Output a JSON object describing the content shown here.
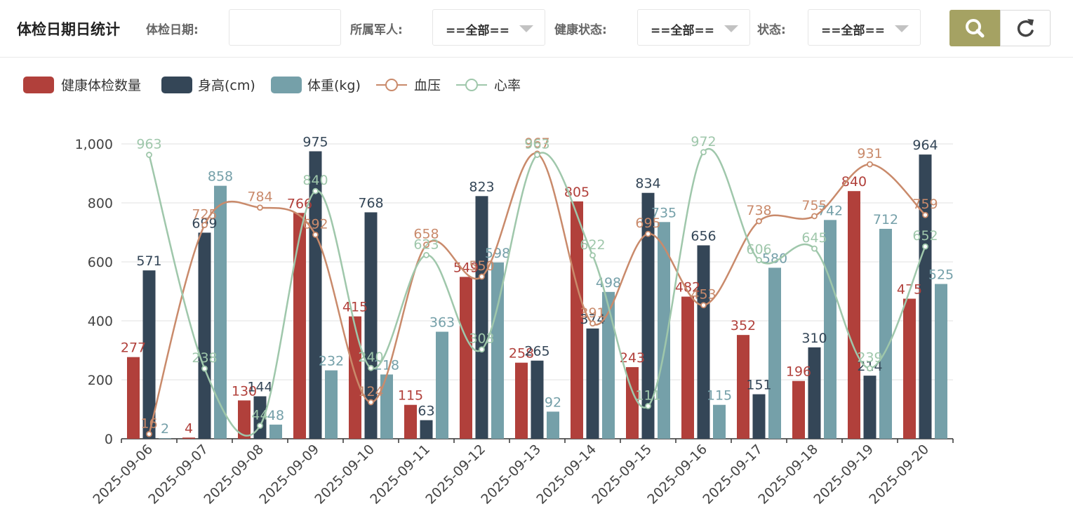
{
  "header": {
    "title": "体检日期日统计",
    "filters": {
      "date_label": "体检日期:",
      "date_value": "",
      "soldier_label": "所属军人:",
      "soldier_value": "==全部==",
      "health_label": "健康状态:",
      "health_value": "==全部==",
      "status_label": "状态:",
      "status_value": "==全部=="
    },
    "search_icon": "search-icon",
    "refresh_icon": "refresh-icon"
  },
  "legend": [
    {
      "name": "健康体检数量",
      "color": "#b1403b",
      "kind": "bar"
    },
    {
      "name": "身高(cm)",
      "color": "#344657",
      "kind": "bar"
    },
    {
      "name": "体重(kg)",
      "color": "#75a0a9",
      "kind": "bar"
    },
    {
      "name": "血压",
      "color": "#c98a6b",
      "kind": "line"
    },
    {
      "name": "心率",
      "color": "#9fc7ab",
      "kind": "line"
    }
  ],
  "chart_data": {
    "type": "bar",
    "categories": [
      "2025-09-06",
      "2025-09-07",
      "2025-09-08",
      "2025-09-09",
      "2025-09-10",
      "2025-09-11",
      "2025-09-12",
      "2025-09-13",
      "2025-09-14",
      "2025-09-15",
      "2025-09-16",
      "2025-09-17",
      "2025-09-18",
      "2025-09-19",
      "2025-09-20"
    ],
    "ylim": [
      0,
      1000
    ],
    "yticks": [
      0,
      200,
      400,
      600,
      800,
      1000
    ],
    "ytick_labels": [
      "0",
      "200",
      "400",
      "600",
      "800",
      "1,000"
    ],
    "series": [
      {
        "name": "健康体检数量",
        "type": "bar",
        "color": "#b1403b",
        "values": [
          277,
          4,
          130,
          766,
          415,
          115,
          549,
          258,
          805,
          243,
          482,
          352,
          196,
          840,
          475
        ]
      },
      {
        "name": "身高(cm)",
        "type": "bar",
        "color": "#344657",
        "values": [
          571,
          699,
          144,
          975,
          768,
          63,
          823,
          265,
          374,
          834,
          656,
          151,
          310,
          214,
          964
        ]
      },
      {
        "name": "体重(kg)",
        "type": "bar",
        "color": "#75a0a9",
        "values": [
          2,
          858,
          48,
          232,
          218,
          363,
          598,
          92,
          498,
          735,
          115,
          580,
          742,
          712,
          525
        ]
      },
      {
        "name": "血压",
        "type": "line",
        "color": "#c98a6b",
        "values": [
          16,
          725,
          784,
          692,
          124,
          658,
          550,
          967,
          391,
          695,
          453,
          738,
          755,
          931,
          759
        ]
      },
      {
        "name": "心率",
        "type": "line",
        "color": "#9fc7ab",
        "values": [
          963,
          238,
          44,
          840,
          240,
          623,
          303,
          963,
          622,
          111,
          972,
          606,
          645,
          239,
          652
        ]
      }
    ]
  }
}
